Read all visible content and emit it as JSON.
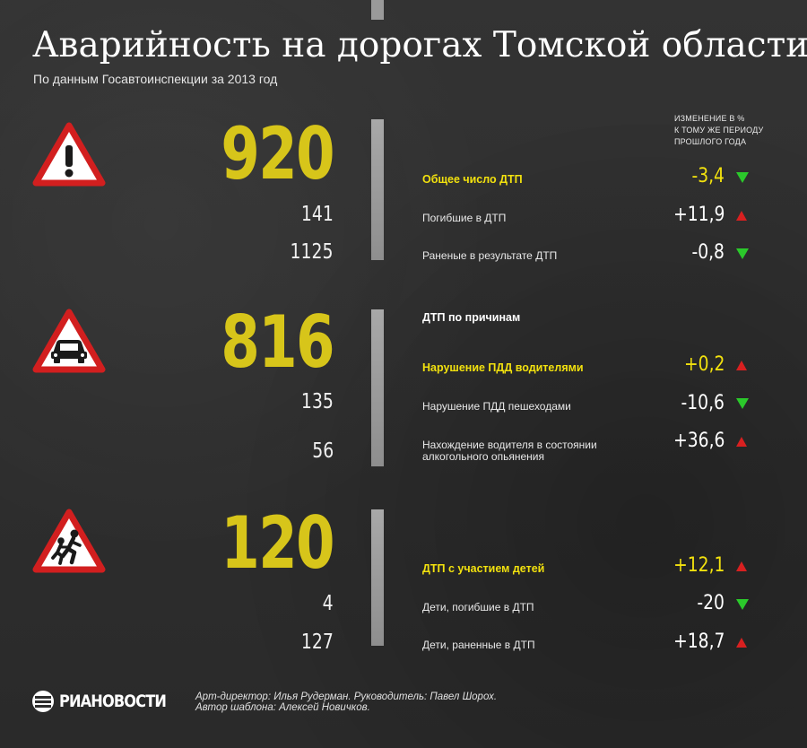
{
  "title": "Аварийность на дорогах Томской области",
  "subtitle": "По данным Госавтоинспекции за 2013 год",
  "change_header": [
    "ИЗМЕНЕНИЕ В %",
    "К ТОМУ ЖЕ ПЕРИОДУ",
    "ПРОШЛОГО ГОДА"
  ],
  "sections": [
    {
      "icon": "warning-exclamation-icon",
      "big": "920",
      "numbers": [
        "141",
        "1125"
      ],
      "rows": [
        {
          "label": "Общее число ДТП",
          "value": "-3,4",
          "dir": "down"
        },
        {
          "label": "Погибшие в ДТП",
          "value": "+11,9",
          "dir": "up"
        },
        {
          "label": "Раненые в результате ДТП",
          "value": "-0,8",
          "dir": "down"
        }
      ]
    },
    {
      "icon": "car-warning-icon",
      "big": "816",
      "numbers": [
        "135",
        "56"
      ],
      "heading": "ДТП по причинам",
      "rows": [
        {
          "label": "Нарушение ПДД водителями",
          "value": "+0,2",
          "dir": "up"
        },
        {
          "label": "Нарушение ПДД пешеходами",
          "value": "-10,6",
          "dir": "down"
        },
        {
          "label": "Нахождение водителя в состоянии",
          "label2": "алкогольного опьянения",
          "value": "+36,6",
          "dir": "up"
        }
      ]
    },
    {
      "icon": "children-warning-icon",
      "big": "120",
      "numbers": [
        "4",
        "127"
      ],
      "rows": [
        {
          "label": "ДТП с участием детей",
          "value": "+12,1",
          "dir": "up"
        },
        {
          "label": "Дети, погибшие в ДТП",
          "value": "-20",
          "dir": "down"
        },
        {
          "label": "Дети, раненные в ДТП",
          "value": "+18,7",
          "dir": "up"
        }
      ]
    }
  ],
  "footer": {
    "logo": "РИАНОВОСТИ",
    "credits": [
      "Арт-директор: Илья Рудерман. Руководитель: Павел Шорох.",
      "Автор шаблона: Алексей Новичков."
    ]
  },
  "colors": {
    "accent": "#d7c51a",
    "highlight": "#f2e10e",
    "down": "#2bc92b",
    "up": "#d82020",
    "sign_border": "#d21f1f"
  }
}
